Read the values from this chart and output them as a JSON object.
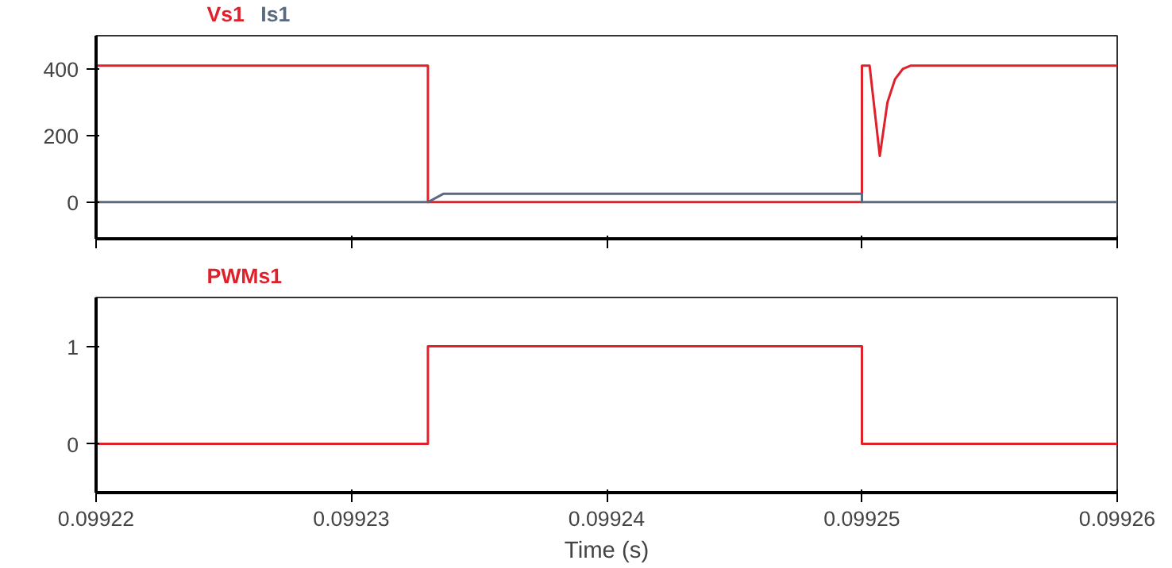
{
  "chart_data": [
    {
      "type": "line",
      "xlim": [
        0.09922,
        0.09926
      ],
      "xticks": [
        0.09922,
        0.09923,
        0.09924,
        0.09925,
        0.09926
      ],
      "ylim": [
        -110,
        500
      ],
      "yticks": [
        0,
        200,
        400
      ],
      "tick_labels": "y",
      "grid": false,
      "series": [
        {
          "name": "Vs1",
          "color": "#e0202a",
          "x": [
            0.09922,
            0.099233,
            0.099233,
            0.09925,
            0.09925,
            0.0992503,
            0.0992507,
            0.099251,
            0.0992513,
            0.0992516,
            0.0992519,
            0.09926
          ],
          "values": [
            410,
            410,
            0,
            0,
            410,
            410,
            139,
            300,
            370,
            400,
            410,
            410
          ]
        },
        {
          "name": "Is1",
          "color": "#5a6a80",
          "x": [
            0.09922,
            0.099233,
            0.0992336,
            0.09925,
            0.09925,
            0.09926
          ],
          "values": [
            0,
            0,
            25,
            25,
            0,
            0
          ]
        }
      ]
    },
    {
      "type": "line",
      "xlim": [
        0.09922,
        0.09926
      ],
      "xticks": [
        0.09922,
        0.09923,
        0.09924,
        0.09925,
        0.09926
      ],
      "ylim": [
        -0.5,
        1.5
      ],
      "yticks": [
        0,
        1
      ],
      "xlabel": "Time (s)",
      "grid": false,
      "series": [
        {
          "name": "PWMs1",
          "color": "#e0202a",
          "x": [
            0.09922,
            0.099233,
            0.099233,
            0.09925,
            0.09925,
            0.09926
          ],
          "values": [
            0,
            0,
            1,
            1,
            0,
            0
          ]
        }
      ]
    }
  ]
}
